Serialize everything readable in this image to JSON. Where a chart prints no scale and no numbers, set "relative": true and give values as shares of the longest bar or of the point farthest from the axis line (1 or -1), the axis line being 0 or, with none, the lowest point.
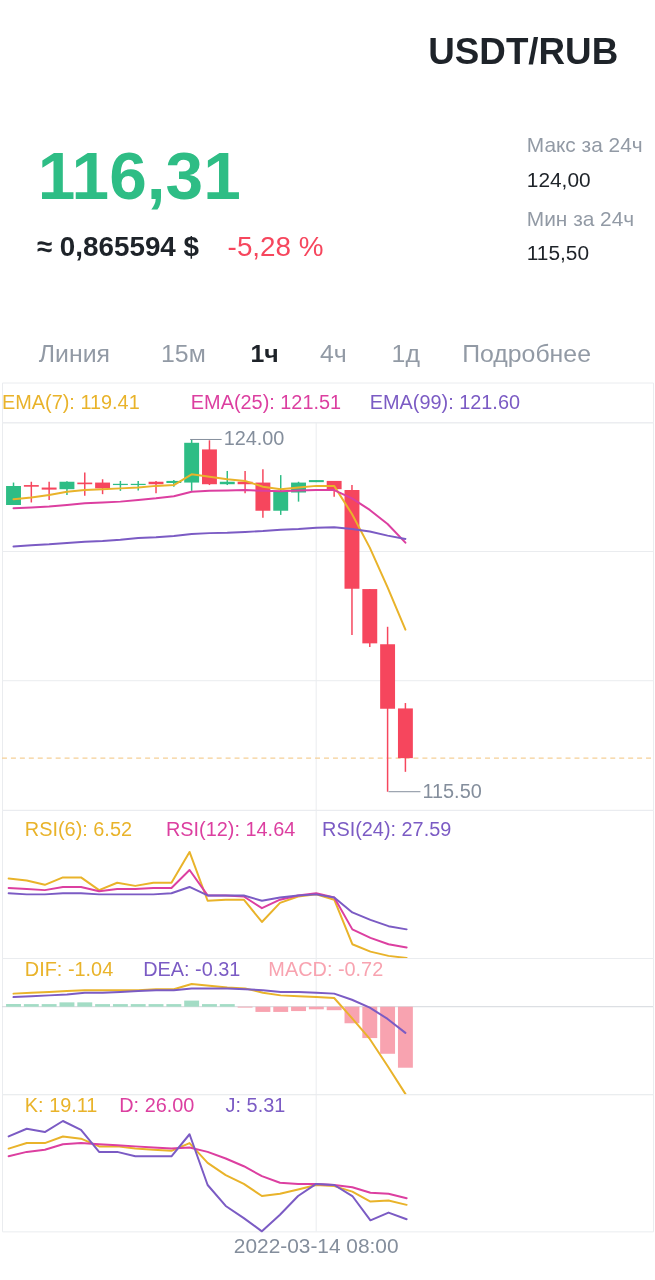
{
  "chart_data": [
    {
      "type": "other",
      "title": "USDT/RUB",
      "annotations": [
        "116,31",
        "≈ 0,865594 $",
        "-5,28 %",
        "Макс за 24ч",
        "124,00",
        "Мин за 24ч",
        "115,50",
        "Линия",
        "15м",
        "1ч",
        "4ч",
        "1д",
        "Подробнее"
      ]
    },
    {
      "type": "candlestick",
      "categories": [
        null,
        null,
        null,
        null,
        null,
        null,
        null,
        null,
        null,
        null,
        null,
        null,
        null,
        null,
        null,
        null,
        null,
        null,
        null,
        null,
        null,
        null,
        null
      ],
      "ohlc": [
        [
          122.42,
          122.96,
          122.42,
          122.88
        ],
        [
          122.9,
          122.98,
          122.48,
          122.86
        ],
        [
          122.84,
          122.98,
          122.54,
          122.79
        ],
        [
          122.8,
          122.99,
          122.66,
          122.98
        ],
        [
          122.96,
          123.2,
          122.64,
          122.92
        ],
        [
          122.96,
          123.04,
          122.68,
          122.82
        ],
        [
          122.9,
          123.0,
          122.76,
          122.93
        ],
        [
          122.9,
          123.0,
          122.77,
          122.93
        ],
        [
          122.98,
          123.0,
          122.7,
          122.92
        ],
        [
          122.95,
          123.02,
          122.86,
          123.0
        ],
        [
          122.96,
          124.0,
          122.76,
          123.92
        ],
        [
          123.76,
          123.98,
          122.9,
          122.92
        ],
        [
          122.92,
          123.24,
          122.9,
          122.98
        ],
        [
          122.98,
          123.24,
          122.7,
          122.92
        ],
        [
          122.96,
          123.28,
          122.11,
          122.28
        ],
        [
          122.28,
          123.14,
          122.18,
          122.76
        ],
        [
          122.72,
          122.98,
          122.5,
          122.96
        ],
        [
          122.97,
          123.02,
          122.97,
          123.02
        ],
        [
          123.0,
          123.0,
          122.62,
          122.8
        ],
        [
          122.78,
          122.9,
          119.28,
          120.4
        ],
        [
          120.39,
          120.39,
          118.99,
          119.08
        ],
        [
          119.06,
          119.48,
          115.5,
          117.5
        ],
        [
          117.51,
          117.64,
          115.98,
          116.31
        ]
      ],
      "colors": [
        "#2ebd85",
        "#f6465d",
        "#f6465d",
        "#2ebd85",
        "#f6465d",
        "#f6465d",
        "#2ebd85",
        "#2ebd85",
        "#f6465d",
        "#2ebd85",
        "#2ebd85",
        "#f6465d",
        "#2ebd85",
        "#f6465d",
        "#f6465d",
        "#2ebd85",
        "#2ebd85",
        "#2ebd85",
        "#f6465d",
        "#f6465d",
        "#f6465d",
        "#f6465d",
        "#f6465d"
      ],
      "series": [
        {
          "name": "EMA(7): 119.41",
          "type": "line",
          "color": "#e9b32a",
          "values": [
            122.56,
            122.6,
            122.66,
            122.74,
            122.78,
            122.8,
            122.82,
            122.84,
            122.88,
            122.9,
            123.16,
            123.1,
            123.04,
            123.0,
            122.86,
            122.8,
            122.84,
            122.88,
            122.88,
            122.2,
            121.39,
            120.43,
            119.41
          ]
        },
        {
          "name": "EMA(25): 121.51",
          "type": "line",
          "color": "#dc3fa0",
          "values": [
            122.34,
            122.36,
            122.38,
            122.42,
            122.46,
            122.48,
            122.5,
            122.54,
            122.58,
            122.63,
            122.74,
            122.76,
            122.77,
            122.78,
            122.76,
            122.75,
            122.77,
            122.78,
            122.78,
            122.58,
            122.3,
            121.96,
            121.51
          ]
        },
        {
          "name": "EMA(99): 121.60",
          "type": "line",
          "color": "#7b5bc4",
          "values": [
            121.42,
            121.45,
            121.47,
            121.5,
            121.53,
            121.55,
            121.58,
            121.62,
            121.64,
            121.67,
            121.72,
            121.74,
            121.75,
            121.77,
            121.79,
            121.82,
            121.84,
            121.87,
            121.88,
            121.84,
            121.78,
            121.68,
            121.6
          ]
        }
      ],
      "annotations": [
        "124.00",
        "115.50"
      ],
      "ref_lines": [
        {
          "axis": "y",
          "value": 116.31,
          "color": "#f5cf96",
          "line_style": "dashed"
        }
      ]
    },
    {
      "type": "line",
      "relative": true,
      "categories": [
        null,
        null,
        null,
        null,
        null,
        null,
        null,
        null,
        null,
        null,
        null,
        null,
        null,
        null,
        null,
        null,
        null,
        null,
        null,
        null,
        null,
        null,
        null
      ],
      "series": [
        {
          "name": "RSI(6): 6.52",
          "color": "#e9b32a",
          "values": [
            0.75,
            0.73,
            0.69,
            0.76,
            0.76,
            0.64,
            0.71,
            0.68,
            0.71,
            0.71,
            1,
            0.54,
            0.55,
            0.55,
            0.34,
            0.52,
            0.58,
            0.6,
            0.55,
            0.13,
            0.06,
            0.02,
            0
          ]
        },
        {
          "name": "RSI(12): 14.64",
          "color": "#dc3fa0",
          "values": [
            0.66,
            0.65,
            0.64,
            0.67,
            0.67,
            0.63,
            0.65,
            0.65,
            0.66,
            0.66,
            0.83,
            0.59,
            0.59,
            0.58,
            0.47,
            0.55,
            0.59,
            0.61,
            0.57,
            0.27,
            0.19,
            0.13,
            0.1
          ]
        },
        {
          "name": "RSI(24): 27.59",
          "color": "#7b5bc4",
          "values": [
            0.61,
            0.6,
            0.6,
            0.61,
            0.61,
            0.6,
            0.6,
            0.6,
            0.6,
            0.61,
            0.67,
            0.59,
            0.59,
            0.59,
            0.54,
            0.57,
            0.59,
            0.6,
            0.57,
            0.43,
            0.36,
            0.3,
            0.27
          ]
        }
      ]
    },
    {
      "type": "line",
      "relative": true,
      "categories": [
        null,
        null,
        null,
        null,
        null,
        null,
        null,
        null,
        null,
        null,
        null,
        null,
        null,
        null,
        null,
        null,
        null,
        null,
        null,
        null,
        null,
        null,
        null
      ],
      "series": [
        {
          "name": "DIF: -1.04",
          "color": "#e9b32a",
          "values": [
            0.15,
            0.16,
            0.17,
            0.18,
            0.19,
            0.19,
            0.19,
            0.19,
            0.2,
            0.2,
            0.26,
            0.24,
            0.22,
            0.21,
            0.16,
            0.13,
            0.12,
            0.11,
            0.1,
            -0.13,
            -0.37,
            -0.68,
            -1
          ]
        },
        {
          "name": "DEA: -0.31",
          "color": "#7b5bc4",
          "values": [
            0.11,
            0.12,
            0.13,
            0.14,
            0.16,
            0.16,
            0.17,
            0.18,
            0.19,
            0.19,
            0.21,
            0.21,
            0.21,
            0.2,
            0.19,
            0.17,
            0.17,
            0.16,
            0.15,
            0.08,
            -0.01,
            -0.14,
            -0.3
          ]
        },
        {
          "name": "MACD: -0.72",
          "type": "bar",
          "colors": [
            "#a3dcc5",
            "#a3dcc5",
            "#a3dcc5",
            "#a3dcc5",
            "#a3dcc5",
            "#a3dcc5",
            "#a3dcc5",
            "#a3dcc5",
            "#a3dcc5",
            "#a3dcc5",
            "#a3dcc5",
            "#a3dcc5",
            "#a3dcc5",
            "#f8a3b0",
            "#f8a3b0",
            "#f8a3b0",
            "#f8a3b0",
            "#f8a3b0",
            "#f8a3b0",
            "#f8a3b0",
            "#f8a3b0",
            "#f8a3b0",
            "#f8a3b0"
          ],
          "values": [
            0.03,
            0.03,
            0.03,
            0.05,
            0.05,
            0.03,
            0.03,
            0.03,
            0.03,
            0.03,
            0.07,
            0.03,
            0.03,
            -0.01,
            -0.06,
            -0.06,
            -0.05,
            -0.03,
            -0.04,
            -0.19,
            -0.36,
            -0.54,
            -0.7
          ]
        }
      ]
    },
    {
      "type": "line",
      "relative": true,
      "categories": [
        null,
        null,
        null,
        null,
        null,
        null,
        null,
        null,
        null,
        null,
        null,
        null,
        null,
        null,
        null,
        null,
        null,
        null,
        null,
        null,
        null,
        null,
        null
      ],
      "series": [
        {
          "name": "K: 19.11",
          "color": "#e9b32a",
          "values": [
            0.75,
            0.8,
            0.8,
            0.86,
            0.84,
            0.77,
            0.77,
            0.75,
            0.74,
            0.73,
            0.8,
            0.62,
            0.51,
            0.43,
            0.32,
            0.34,
            0.38,
            0.42,
            0.41,
            0.36,
            0.27,
            0.28,
            0.24
          ]
        },
        {
          "name": "D: 26.00",
          "color": "#dc3fa0",
          "values": [
            0.68,
            0.72,
            0.74,
            0.79,
            0.8,
            0.79,
            0.78,
            0.77,
            0.76,
            0.75,
            0.76,
            0.72,
            0.66,
            0.59,
            0.5,
            0.44,
            0.43,
            0.43,
            0.42,
            0.4,
            0.35,
            0.34,
            0.3
          ]
        },
        {
          "name": "J: 5.31",
          "color": "#7b5bc4",
          "values": [
            0.86,
            0.93,
            0.9,
            1,
            0.92,
            0.72,
            0.72,
            0.68,
            0.68,
            0.68,
            0.88,
            0.42,
            0.23,
            0.12,
            0,
            0.15,
            0.32,
            0.43,
            0.42,
            0.32,
            0.1,
            0.17,
            0.11
          ]
        }
      ],
      "annotations": [
        "2022-03-14 08:00"
      ]
    }
  ]
}
